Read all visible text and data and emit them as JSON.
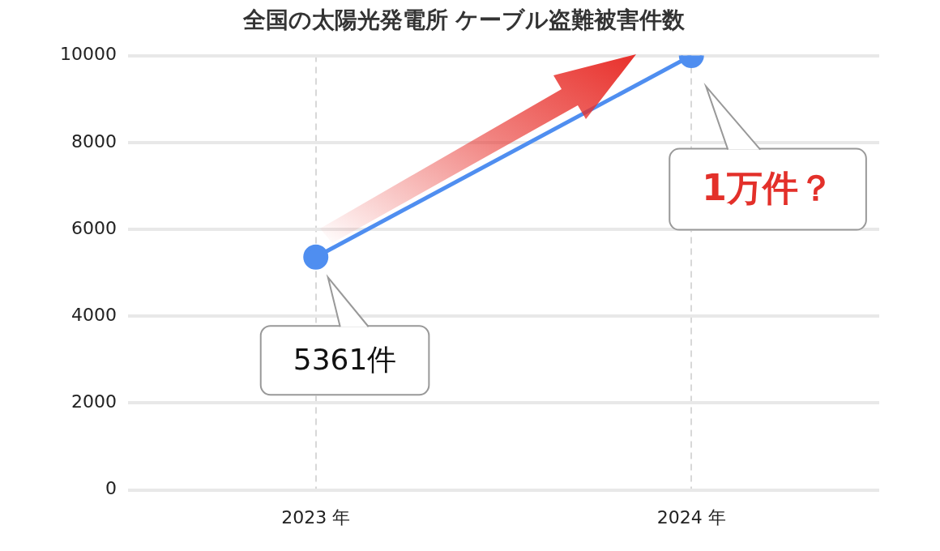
{
  "chart_data": {
    "type": "line",
    "title": "全国の太陽光発電所 ケーブル盗難被害件数",
    "categories": [
      "2023 年",
      "2024 年"
    ],
    "series": [
      {
        "color": "#4f8ef0",
        "values": [
          5361,
          10000
        ]
      }
    ],
    "ylim": [
      0,
      10000
    ],
    "yticks": [
      0,
      2000,
      4000,
      6000,
      8000,
      10000
    ],
    "grid": true,
    "legend": false,
    "marker": "circle",
    "line_style": "solid",
    "annotations": [
      "5361件",
      "1万件？"
    ]
  }
}
